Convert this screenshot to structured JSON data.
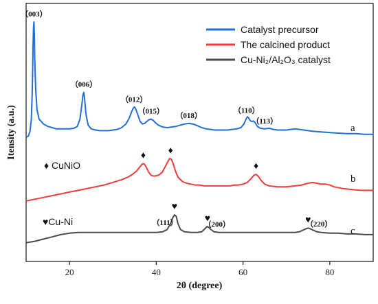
{
  "chart_data": {
    "type": "line",
    "title": "",
    "xlabel": "2θ (degree)",
    "ylabel": "Itensity (a.u.)",
    "xlim": [
      10,
      90
    ],
    "xticks": [
      20,
      40,
      60,
      80
    ],
    "yticks_shown": false,
    "legend_position": "top-right",
    "colors": {
      "blue": "#1f6fd8",
      "red": "#ef3b3b",
      "gray": "#4a4a4a",
      "axis": "#111111"
    },
    "series": [
      {
        "name": "Catalyst precursor",
        "letter": "a",
        "color": "#1f6fd8",
        "points": [
          [
            10,
            5
          ],
          [
            10.5,
            6
          ],
          [
            10.9,
            10
          ],
          [
            11.2,
            20
          ],
          [
            11.4,
            40
          ],
          [
            11.5,
            60
          ],
          [
            11.6,
            80
          ],
          [
            11.7,
            95
          ],
          [
            11.8,
            100
          ],
          [
            11.9,
            90
          ],
          [
            12.0,
            70
          ],
          [
            12.2,
            45
          ],
          [
            12.5,
            28
          ],
          [
            13,
            20
          ],
          [
            14,
            16
          ],
          [
            15,
            14
          ],
          [
            16,
            13
          ],
          [
            17,
            12
          ],
          [
            18,
            12
          ],
          [
            19,
            12
          ],
          [
            20,
            12
          ],
          [
            21,
            12.5
          ],
          [
            21.8,
            14
          ],
          [
            22.4,
            20
          ],
          [
            22.9,
            33
          ],
          [
            23.1,
            40
          ],
          [
            23.3,
            42
          ],
          [
            23.5,
            36
          ],
          [
            23.8,
            24
          ],
          [
            24.3,
            15
          ],
          [
            25,
            12
          ],
          [
            26,
            11
          ],
          [
            27,
            10.5
          ],
          [
            28,
            10.5
          ],
          [
            29,
            10.5
          ],
          [
            30,
            11
          ],
          [
            31,
            11.5
          ],
          [
            32,
            13
          ],
          [
            33,
            16
          ],
          [
            33.8,
            21
          ],
          [
            34.3,
            26
          ],
          [
            34.7,
            29
          ],
          [
            35.0,
            30
          ],
          [
            35.3,
            28
          ],
          [
            35.8,
            23
          ],
          [
            36.3,
            18
          ],
          [
            36.8,
            16
          ],
          [
            37.3,
            16.5
          ],
          [
            37.8,
            18
          ],
          [
            38.3,
            19.5
          ],
          [
            38.8,
            20
          ],
          [
            39.3,
            19
          ],
          [
            39.8,
            17
          ],
          [
            40.5,
            15
          ],
          [
            41.5,
            13.5
          ],
          [
            42.5,
            13
          ],
          [
            43.5,
            13.5
          ],
          [
            44.5,
            14
          ],
          [
            45.5,
            15
          ],
          [
            46.5,
            16
          ],
          [
            47.5,
            16.5
          ],
          [
            48.5,
            16
          ],
          [
            49.5,
            14.5
          ],
          [
            50.5,
            13
          ],
          [
            51.5,
            12
          ],
          [
            52.5,
            11.5
          ],
          [
            53.5,
            11
          ],
          [
            54.5,
            11
          ],
          [
            55.5,
            11
          ],
          [
            56.5,
            11
          ],
          [
            57.5,
            11.5
          ],
          [
            58.5,
            12
          ],
          [
            59.5,
            13
          ],
          [
            60.2,
            16
          ],
          [
            60.7,
            20
          ],
          [
            61.0,
            22
          ],
          [
            61.3,
            21
          ],
          [
            61.6,
            19
          ],
          [
            62.0,
            18
          ],
          [
            62.4,
            18.5
          ],
          [
            62.8,
            17
          ],
          [
            63.3,
            14
          ],
          [
            64,
            12.5
          ],
          [
            65,
            12
          ],
          [
            66,
            12.5
          ],
          [
            67,
            11.5
          ],
          [
            68,
            11
          ],
          [
            69,
            11
          ],
          [
            70,
            11
          ],
          [
            71,
            11.5
          ],
          [
            72,
            12
          ],
          [
            73,
            11.5
          ],
          [
            74,
            11
          ],
          [
            76,
            10
          ],
          [
            78,
            9.5
          ],
          [
            80,
            9
          ],
          [
            82,
            8.5
          ],
          [
            84,
            8
          ],
          [
            86,
            8
          ],
          [
            88,
            7.5
          ],
          [
            90,
            7.5
          ]
        ]
      },
      {
        "name": "The calcined product",
        "letter": "b",
        "color": "#ef3b3b",
        "points": [
          [
            10,
            2
          ],
          [
            12,
            3
          ],
          [
            14,
            4
          ],
          [
            16,
            5
          ],
          [
            18,
            6
          ],
          [
            20,
            7
          ],
          [
            22,
            8
          ],
          [
            24,
            9
          ],
          [
            26,
            10
          ],
          [
            28,
            11
          ],
          [
            30,
            12.5
          ],
          [
            32,
            14
          ],
          [
            33.5,
            15.5
          ],
          [
            34.5,
            17
          ],
          [
            35.5,
            19
          ],
          [
            36.3,
            21.5
          ],
          [
            36.8,
            23
          ],
          [
            37.2,
            23
          ],
          [
            37.6,
            21.5
          ],
          [
            38.2,
            18.5
          ],
          [
            38.8,
            16.5
          ],
          [
            39.5,
            16
          ],
          [
            40.5,
            16.5
          ],
          [
            41.3,
            18
          ],
          [
            42,
            21
          ],
          [
            42.6,
            24
          ],
          [
            43.1,
            26
          ],
          [
            43.5,
            25.5
          ],
          [
            43.9,
            23
          ],
          [
            44.4,
            19
          ],
          [
            45,
            15.5
          ],
          [
            46,
            13
          ],
          [
            47,
            12
          ],
          [
            48,
            11.5
          ],
          [
            49,
            11
          ],
          [
            50,
            11
          ],
          [
            51,
            10.5
          ],
          [
            52,
            10.5
          ],
          [
            53,
            10.5
          ],
          [
            54,
            10.5
          ],
          [
            55,
            10.5
          ],
          [
            56,
            10.5
          ],
          [
            57,
            10.5
          ],
          [
            58,
            11
          ],
          [
            59,
            11
          ],
          [
            60,
            11.5
          ],
          [
            61,
            12.5
          ],
          [
            61.8,
            14.5
          ],
          [
            62.5,
            16.5
          ],
          [
            63.0,
            17
          ],
          [
            63.5,
            16
          ],
          [
            64.2,
            13.5
          ],
          [
            65,
            11.5
          ],
          [
            66,
            10.5
          ],
          [
            68,
            10
          ],
          [
            70,
            10
          ],
          [
            72,
            10.5
          ],
          [
            73.5,
            11
          ],
          [
            75,
            12
          ],
          [
            76,
            12.5
          ],
          [
            77,
            12
          ],
          [
            78,
            11.5
          ],
          [
            79,
            11.5
          ],
          [
            80,
            11
          ],
          [
            81,
            10
          ],
          [
            83,
            9
          ],
          [
            85,
            8.5
          ],
          [
            87,
            8
          ],
          [
            89,
            8
          ],
          [
            90,
            8
          ]
        ]
      },
      {
        "name": "Cu-Ni₂/Al₂O₃ catalyst",
        "letter": "c",
        "color": "#4a4a4a",
        "points": [
          [
            10,
            2
          ],
          [
            12,
            3
          ],
          [
            14,
            4.5
          ],
          [
            16,
            6
          ],
          [
            18,
            7.5
          ],
          [
            20,
            8.5
          ],
          [
            22,
            9
          ],
          [
            24,
            9
          ],
          [
            26,
            9
          ],
          [
            28,
            9
          ],
          [
            30,
            9
          ],
          [
            32,
            9
          ],
          [
            34,
            9
          ],
          [
            36,
            9
          ],
          [
            38,
            9
          ],
          [
            40,
            9
          ],
          [
            41.5,
            9.5
          ],
          [
            42.5,
            11
          ],
          [
            43.3,
            15
          ],
          [
            43.8,
            19
          ],
          [
            44.2,
            21
          ],
          [
            44.6,
            20
          ],
          [
            45.0,
            15
          ],
          [
            45.6,
            11
          ],
          [
            46.5,
            9.5
          ],
          [
            48,
            9
          ],
          [
            49.5,
            9
          ],
          [
            50.5,
            9.5
          ],
          [
            51.2,
            11.5
          ],
          [
            51.7,
            13
          ],
          [
            52.1,
            12.5
          ],
          [
            52.6,
            11
          ],
          [
            53.3,
            9.5
          ],
          [
            54.5,
            9
          ],
          [
            56,
            9
          ],
          [
            58,
            9
          ],
          [
            60,
            9
          ],
          [
            62,
            9
          ],
          [
            64,
            9
          ],
          [
            66,
            9
          ],
          [
            68,
            9
          ],
          [
            70,
            9
          ],
          [
            72,
            9
          ],
          [
            73,
            9.5
          ],
          [
            73.8,
            10.5
          ],
          [
            74.5,
            11.5
          ],
          [
            75,
            12
          ],
          [
            75.5,
            11.5
          ],
          [
            76.2,
            10.5
          ],
          [
            77,
            9.5
          ],
          [
            78,
            9
          ],
          [
            80,
            8.5
          ],
          [
            82,
            8.5
          ],
          [
            84,
            8
          ],
          [
            86,
            8
          ],
          [
            88,
            7.5
          ],
          [
            90,
            7.5
          ]
        ]
      }
    ],
    "peak_labels": [
      {
        "series": 0,
        "x": 11.8,
        "text": "（003）"
      },
      {
        "series": 0,
        "x": 23.3,
        "text": "（006）"
      },
      {
        "series": 0,
        "x": 34.9,
        "text": "（012）"
      },
      {
        "series": 0,
        "x": 38.8,
        "text": "（015）"
      },
      {
        "series": 0,
        "x": 47.5,
        "text": "（018）"
      },
      {
        "series": 0,
        "x": 60.8,
        "text": "（110）"
      },
      {
        "series": 0,
        "x": 65.0,
        "text": "（113）"
      },
      {
        "series": 2,
        "x": 42.0,
        "text": "（111）"
      },
      {
        "series": 2,
        "x": 54.0,
        "text": "（200）"
      },
      {
        "series": 2,
        "x": 77.5,
        "text": "（220）"
      }
    ],
    "markers": [
      {
        "series": 1,
        "x": 37.0,
        "symbol": "♦"
      },
      {
        "series": 1,
        "x": 43.3,
        "symbol": "♦"
      },
      {
        "series": 1,
        "x": 63.0,
        "symbol": "♦"
      },
      {
        "series": 2,
        "x": 44.2,
        "symbol": "♥"
      },
      {
        "series": 2,
        "x": 51.8,
        "symbol": "♥"
      },
      {
        "series": 2,
        "x": 75.0,
        "symbol": "♥"
      }
    ],
    "phase_annotations": [
      {
        "label": "♦ CuNiO"
      },
      {
        "label": "♥Cu-Ni"
      }
    ]
  }
}
